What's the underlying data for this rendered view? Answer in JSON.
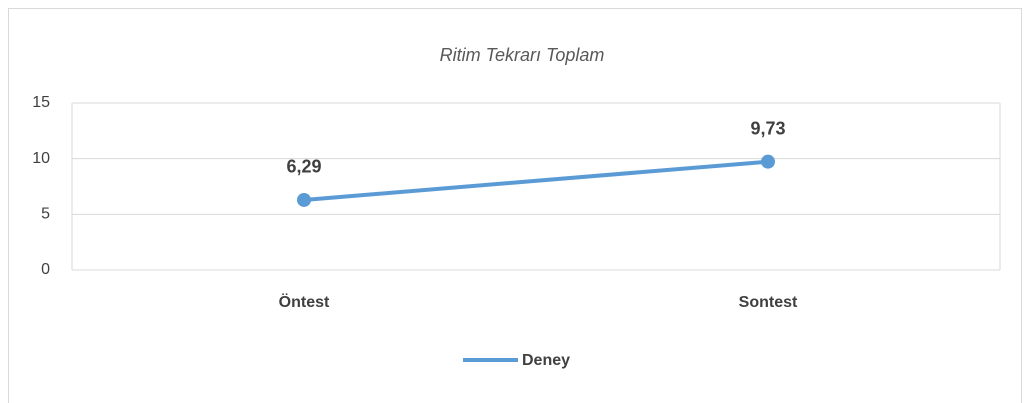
{
  "chart_data": {
    "type": "line",
    "title": "Ritim Tekrarı Toplam",
    "categories": [
      "Öntest",
      "Sontest"
    ],
    "series": [
      {
        "name": "Deney",
        "color": "#5b9bd5",
        "values": [
          6.29,
          9.73
        ],
        "value_labels": [
          "6,29",
          "9,73"
        ]
      }
    ],
    "ylim": [
      0,
      15
    ],
    "yticks": [
      0,
      5,
      10,
      15
    ],
    "grid": true,
    "legend": "bottom"
  }
}
